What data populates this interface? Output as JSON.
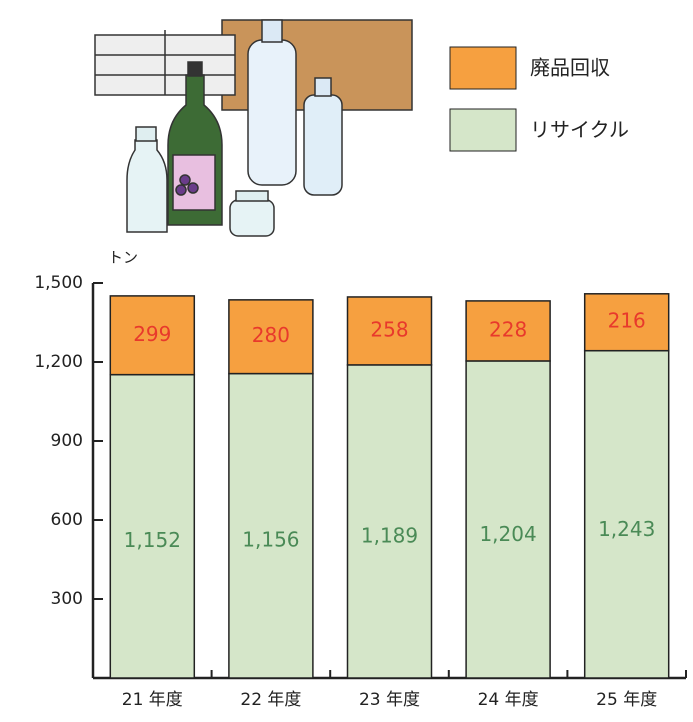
{
  "chart_data": {
    "type": "stacked_bar",
    "unit_label": "トン",
    "categories": [
      "21 年度",
      "22 年度",
      "23 年度",
      "24 年度",
      "25 年度"
    ],
    "series": [
      {
        "name": "廃品回収",
        "color": "#f6a040",
        "label_color": "#e8392c",
        "values": [
          299,
          280,
          258,
          228,
          216
        ]
      },
      {
        "name": "リサイクル",
        "color": "#d5e6c9",
        "label_color": "#4a8a56",
        "values": [
          1152,
          1156,
          1189,
          1204,
          1243
        ],
        "value_labels": [
          "1,152",
          "1,156",
          "1,189",
          "1,204",
          "1,243"
        ]
      }
    ],
    "ylim": [
      0,
      1500
    ],
    "yticks": [
      300,
      600,
      900,
      {
        "value": 1200,
        "label": "1,200"
      },
      {
        "value": 1500,
        "label": "1,500"
      }
    ],
    "legend": "top-right"
  }
}
